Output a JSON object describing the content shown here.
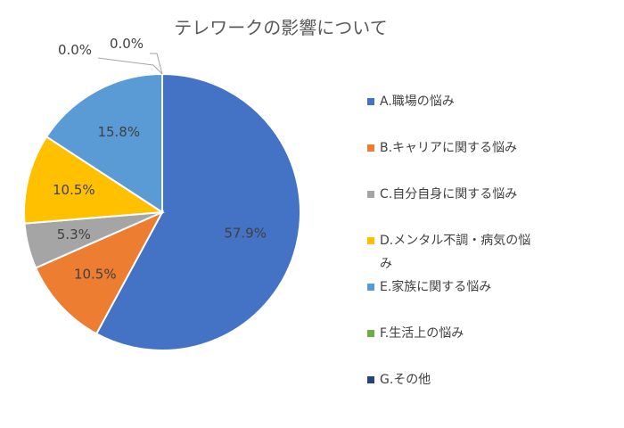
{
  "chart_data": {
    "type": "pie",
    "title": "テレワークの影響について",
    "categories": [
      "A.職場の悩み",
      "B.キャリアに関する悩み",
      "C.自分自身に関する悩み",
      "D.メンタル不調・病気の悩み",
      "E.家族に関する悩み",
      "F.生活上の悩み",
      "G.その他"
    ],
    "values": [
      57.9,
      10.5,
      5.3,
      10.5,
      15.8,
      0.0,
      0.0
    ],
    "labels": [
      "57.9%",
      "10.5%",
      "5.3%",
      "10.5%",
      "15.8%",
      "0.0%",
      "0.0%"
    ],
    "colors": [
      "#4472c4",
      "#ed7d31",
      "#a5a5a5",
      "#ffc000",
      "#5b9bd5",
      "#70ad47",
      "#264478"
    ],
    "legend_position": "right"
  }
}
